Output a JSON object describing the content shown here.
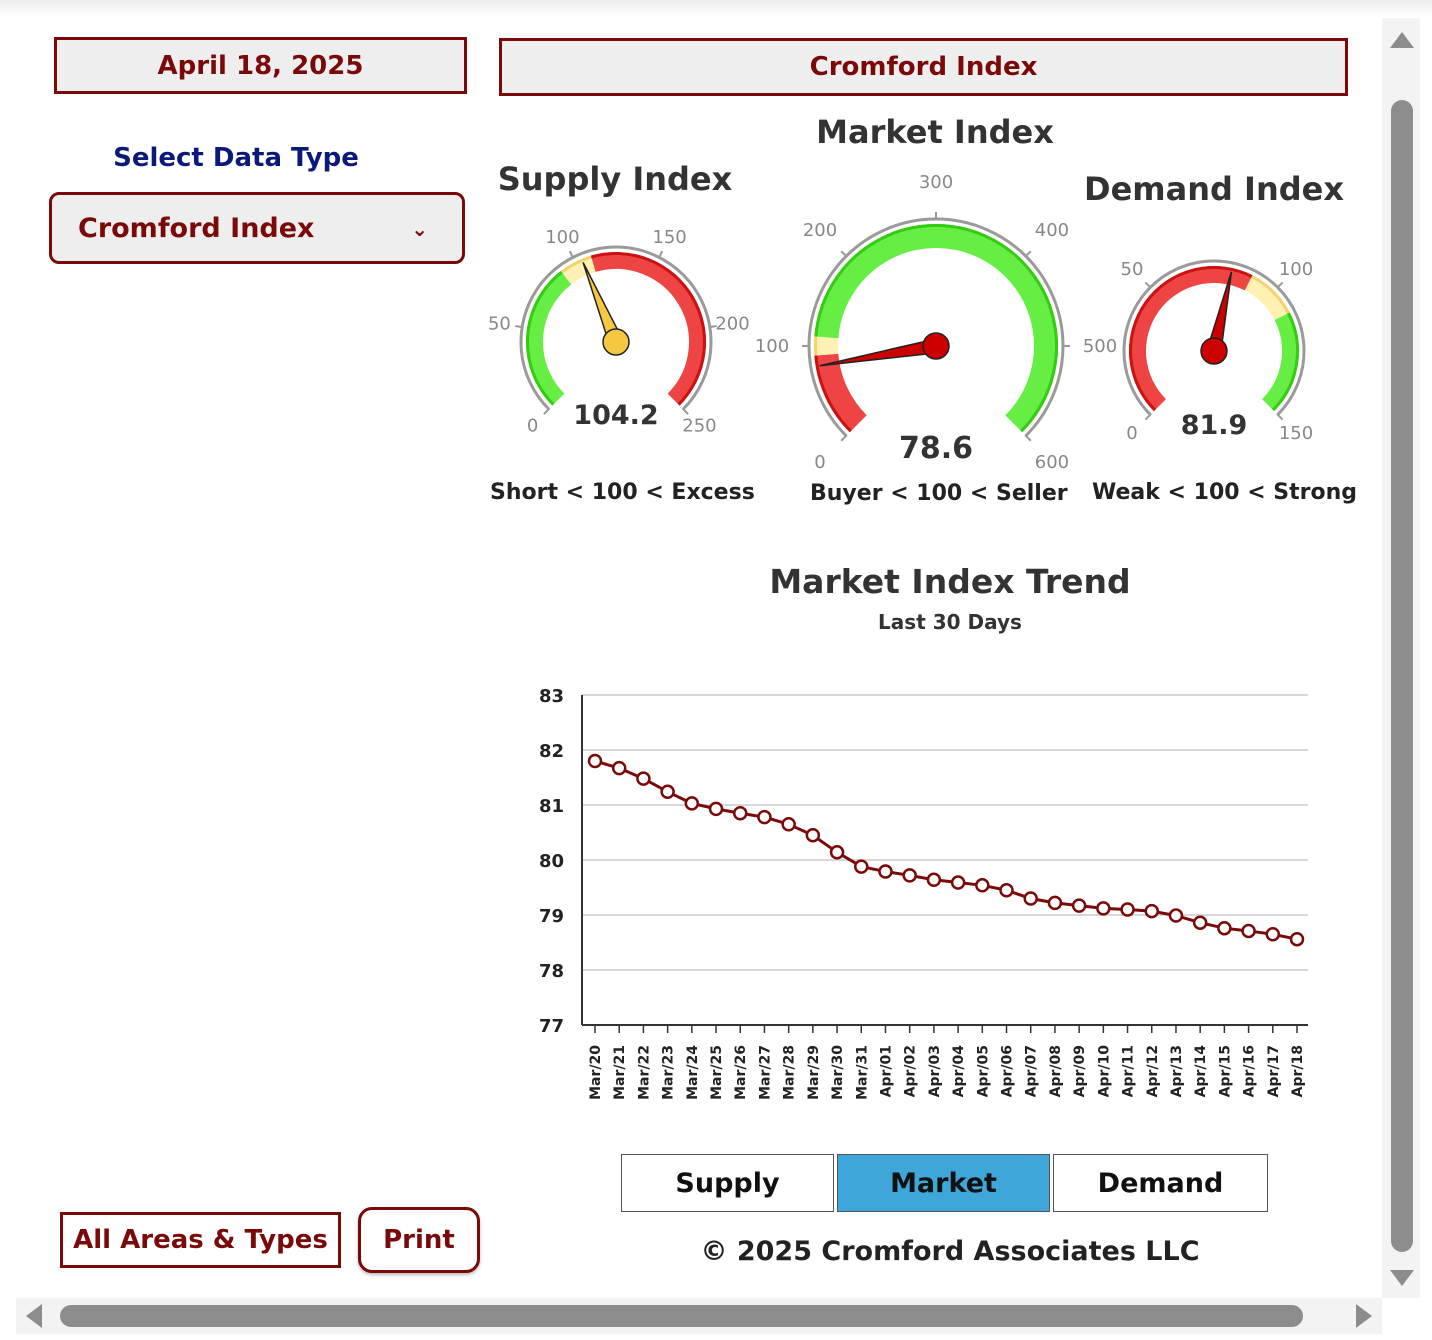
{
  "header": {
    "date": "April 18, 2025",
    "title": "Cromford Index"
  },
  "sidebar": {
    "select_label": "Select Data Type",
    "select_value": "Cromford Index",
    "all_areas_label": "All Areas & Types",
    "print_label": "Print"
  },
  "colors": {
    "accent": "#7a0a0a",
    "label_blue": "#0b1a7a",
    "gauge_red": "#ee4444",
    "gauge_yellow": "#fff0b3",
    "gauge_green": "#66ee44",
    "tab_active": "#3ea6d8",
    "trend_line": "#7a0a0a"
  },
  "gauges": {
    "supply": {
      "title": "Supply Index",
      "value": 104.2,
      "value_label": "104.2",
      "min": 0,
      "max": 250,
      "ticks": [
        "0",
        "50",
        "100",
        "150",
        "200",
        "250"
      ],
      "tick_values": [
        0,
        50,
        100,
        150,
        200,
        250
      ],
      "bands": [
        {
          "from": 0,
          "to": 90,
          "color": "green"
        },
        {
          "from": 90,
          "to": 110,
          "color": "yellow"
        },
        {
          "from": 110,
          "to": 250,
          "color": "red"
        }
      ],
      "needle_color": "#f5c842",
      "caption": "Short < 100 < Excess"
    },
    "market": {
      "title": "Market Index",
      "value": 78.6,
      "value_label": "78.6",
      "min": 0,
      "max": 600,
      "ticks": [
        "0",
        "100",
        "200",
        "300",
        "400",
        "500",
        "600"
      ],
      "tick_values": [
        0,
        100,
        200,
        300,
        400,
        500,
        600
      ],
      "bands": [
        {
          "from": 0,
          "to": 90,
          "color": "red"
        },
        {
          "from": 90,
          "to": 110,
          "color": "yellow"
        },
        {
          "from": 110,
          "to": 600,
          "color": "green"
        }
      ],
      "needle_color": "#cc0000",
      "caption": "Buyer < 100 < Seller"
    },
    "demand": {
      "title": "Demand Index",
      "value": 81.9,
      "value_label": "81.9",
      "min": 0,
      "max": 150,
      "ticks": [
        "0",
        "50",
        "100",
        "150"
      ],
      "tick_values": [
        0,
        50,
        100,
        150
      ],
      "bands": [
        {
          "from": 0,
          "to": 90,
          "color": "red"
        },
        {
          "from": 90,
          "to": 110,
          "color": "yellow"
        },
        {
          "from": 110,
          "to": 150,
          "color": "green"
        }
      ],
      "needle_color": "#cc0000",
      "caption": "Weak < 100 < Strong"
    }
  },
  "trend": {
    "title": "Market Index Trend",
    "subtitle": "Last 30 Days"
  },
  "chart_data": {
    "type": "line",
    "title": "Market Index Trend",
    "subtitle": "Last 30 Days",
    "xlabel": "",
    "ylabel": "",
    "ylim": [
      77,
      83
    ],
    "yticks": [
      "77",
      "78",
      "79",
      "80",
      "81",
      "82",
      "83"
    ],
    "grid": true,
    "x": [
      "Mar/20",
      "Mar/21",
      "Mar/22",
      "Mar/23",
      "Mar/24",
      "Mar/25",
      "Mar/26",
      "Mar/27",
      "Mar/28",
      "Mar/29",
      "Mar/30",
      "Mar/31",
      "Apr/01",
      "Apr/02",
      "Apr/03",
      "Apr/04",
      "Apr/05",
      "Apr/06",
      "Apr/07",
      "Apr/08",
      "Apr/09",
      "Apr/10",
      "Apr/11",
      "Apr/12",
      "Apr/13",
      "Apr/14",
      "Apr/15",
      "Apr/16",
      "Apr/17",
      "Apr/18"
    ],
    "series": [
      {
        "values": [
          81.8,
          81.67,
          81.48,
          81.24,
          81.03,
          80.93,
          80.85,
          80.78,
          80.65,
          80.45,
          80.14,
          79.88,
          79.79,
          79.72,
          79.64,
          79.59,
          79.54,
          79.45,
          79.3,
          79.22,
          79.17,
          79.12,
          79.1,
          79.07,
          78.99,
          78.86,
          78.76,
          78.71,
          78.65,
          78.56
        ]
      }
    ]
  },
  "tabs": [
    {
      "label": "Supply",
      "active": false
    },
    {
      "label": "Market",
      "active": true
    },
    {
      "label": "Demand",
      "active": false
    }
  ],
  "footer": {
    "copyright": "© 2025 Cromford Associates LLC"
  }
}
